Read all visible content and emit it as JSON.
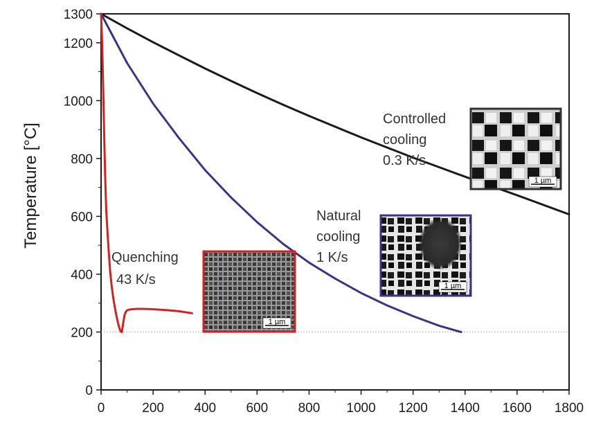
{
  "chart_data": {
    "type": "line",
    "title": "",
    "xlabel": "",
    "ylabel": "Temperature [°C]",
    "xlim": [
      0,
      1800
    ],
    "ylim": [
      0,
      1300
    ],
    "x_ticks": [
      0,
      200,
      400,
      600,
      800,
      1000,
      1200,
      1400,
      1600,
      1800
    ],
    "y_ticks": [
      0,
      200,
      400,
      600,
      800,
      1000,
      1200,
      1300
    ],
    "reference_line_y": 200,
    "grid": false,
    "series": [
      {
        "id": "controlled",
        "name": "",
        "color": "#1a1a1a",
        "x": [
          0,
          100,
          200,
          300,
          400,
          500,
          600,
          700,
          800,
          900,
          1000,
          1100,
          1200,
          1300,
          1400,
          1500,
          1600,
          1700,
          1800
        ],
        "y": [
          1300,
          1250,
          1202,
          1156,
          1111,
          1068,
          1026,
          986,
          947,
          910,
          873,
          838,
          803,
          770,
          737,
          705,
          673,
          640,
          607
        ]
      },
      {
        "id": "natural",
        "name": "",
        "color": "#3a3388",
        "x": [
          0,
          100,
          200,
          300,
          400,
          500,
          600,
          700,
          800,
          900,
          1000,
          1100,
          1200,
          1300,
          1385
        ],
        "y": [
          1300,
          1130,
          990,
          870,
          760,
          665,
          580,
          505,
          440,
          385,
          335,
          292,
          255,
          222,
          200
        ]
      },
      {
        "id": "quenching",
        "name": "",
        "color": "#d42020",
        "x": [
          0,
          4,
          8,
          12,
          16,
          20,
          25,
          30,
          35,
          40,
          45,
          50,
          55,
          60,
          65,
          70,
          75,
          80,
          85,
          90,
          95,
          100,
          110,
          120,
          140,
          160,
          200,
          250,
          300,
          350
        ],
        "y": [
          1300,
          1200,
          1050,
          880,
          730,
          620,
          540,
          470,
          410,
          365,
          330,
          300,
          275,
          252,
          232,
          215,
          202,
          200,
          230,
          258,
          270,
          275,
          278,
          279,
          280,
          280,
          279,
          276,
          272,
          265
        ]
      }
    ],
    "annotations": [
      {
        "id": "controlled",
        "lines": [
          "Controlled",
          "cooling",
          "0.3 K/s"
        ],
        "color": "#333333",
        "frame_color": "#333333",
        "scale_bar": "1 µm"
      },
      {
        "id": "natural",
        "lines": [
          "Natural",
          "cooling",
          "1 K/s"
        ],
        "color": "#333333",
        "frame_color": "#3a3388",
        "scale_bar": "1 µm"
      },
      {
        "id": "quenching",
        "lines": [
          "Quenching",
          "43 K/s"
        ],
        "color": "#333333",
        "frame_color": "#d42020",
        "scale_bar": "1 µm"
      }
    ]
  }
}
